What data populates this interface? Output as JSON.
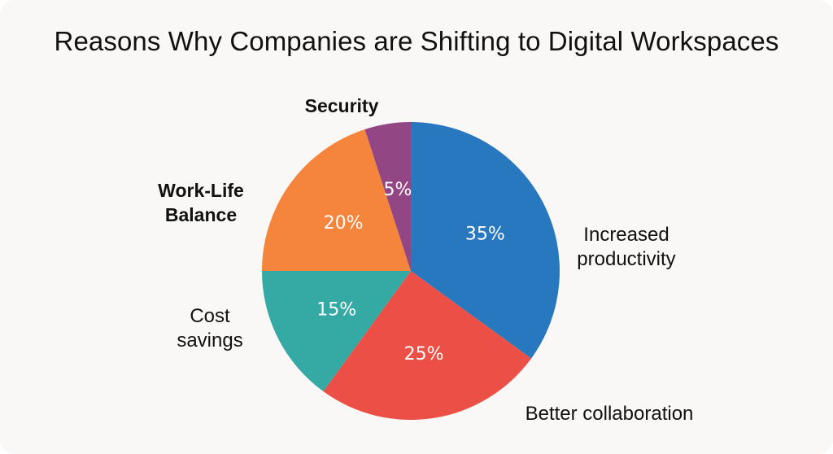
{
  "chart_data": {
    "type": "pie",
    "title": "Reasons Why Companies are Shifting to Digital Workspaces",
    "slices": [
      {
        "label": "Increased productivity",
        "label_lines": [
          "Increased",
          "productivity"
        ],
        "value": 35,
        "value_label": "35%",
        "color": "#2878c0",
        "bold": false
      },
      {
        "label": "Better collaboration",
        "label_lines": [
          "Better collaboration"
        ],
        "value": 25,
        "value_label": "25%",
        "color": "#ec4f45",
        "bold": false
      },
      {
        "label": "Cost savings",
        "label_lines": [
          "Cost",
          "savings"
        ],
        "value": 15,
        "value_label": "15%",
        "color": "#35a9a4",
        "bold": false
      },
      {
        "label": "Work-Life Balance",
        "label_lines": [
          "Work-Life",
          "Balance"
        ],
        "value": 20,
        "value_label": "20%",
        "color": "#f5843c",
        "bold": true
      },
      {
        "label": "Security",
        "label_lines": [
          "Security"
        ],
        "value": 5,
        "value_label": "5%",
        "color": "#924784",
        "bold": true
      }
    ]
  }
}
